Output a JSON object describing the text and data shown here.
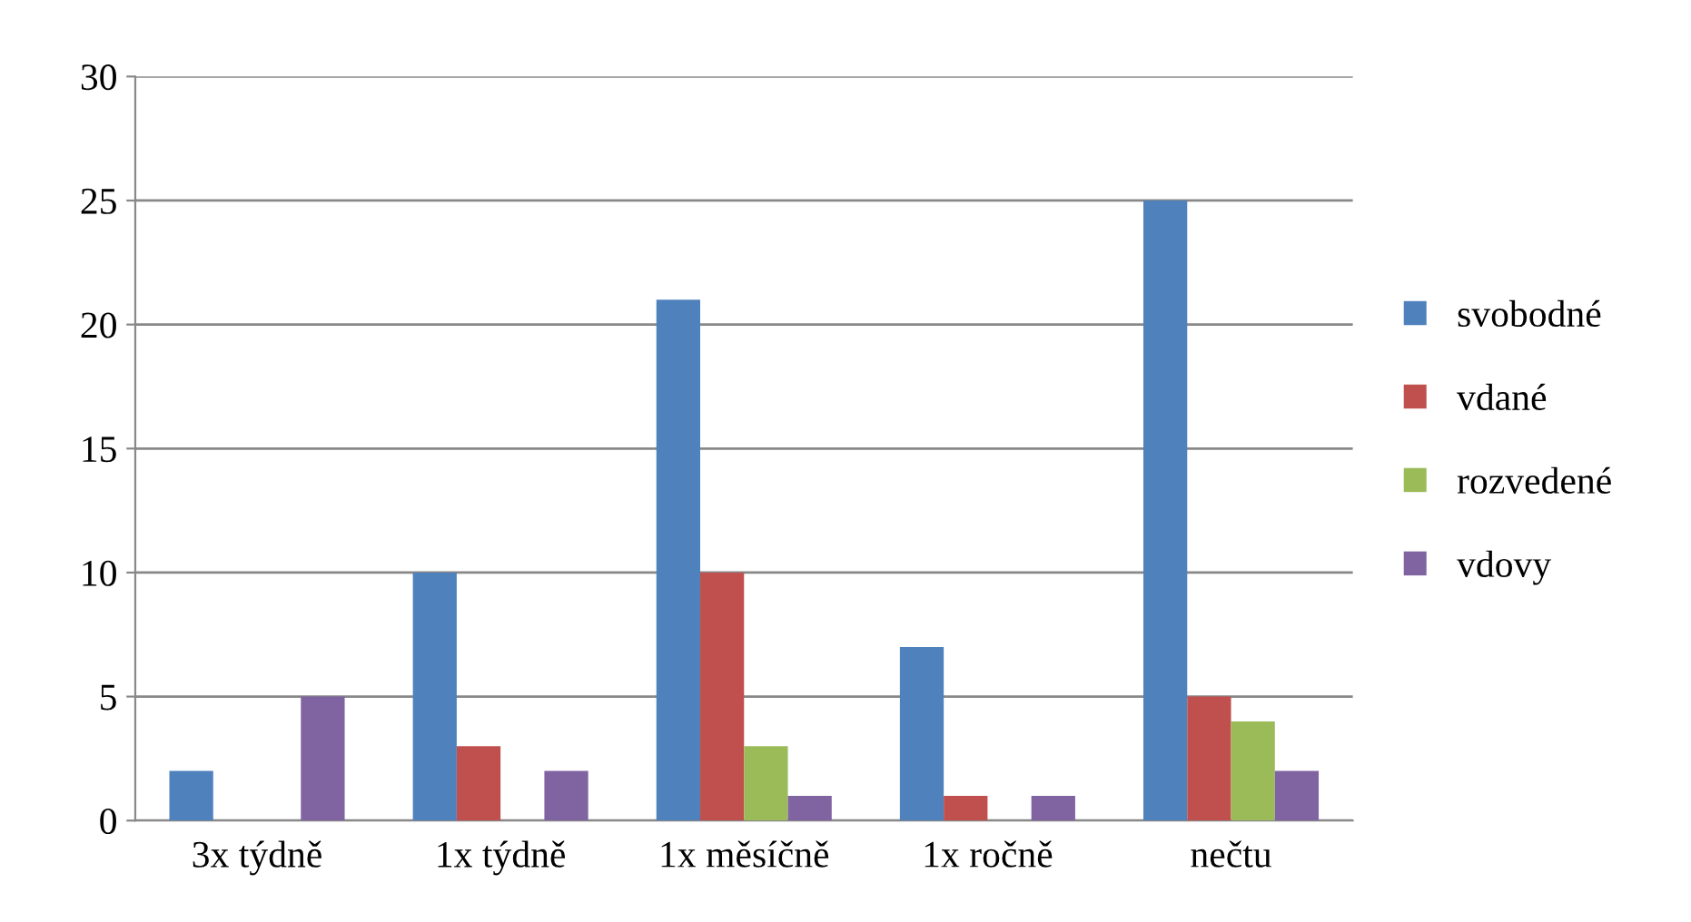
{
  "chart_data": {
    "type": "bar",
    "categories": [
      "3x týdně",
      "1x týdně",
      "1x měsíčně",
      "1x ročně",
      "nečtu"
    ],
    "series": [
      {
        "name": "svobodné",
        "color": "#4f81bd",
        "values": [
          2,
          10,
          21,
          7,
          25
        ]
      },
      {
        "name": "vdané",
        "color": "#c0504d",
        "values": [
          0,
          3,
          10,
          1,
          5
        ]
      },
      {
        "name": "rozvedené",
        "color": "#9bbb59",
        "values": [
          0,
          0,
          3,
          0,
          4
        ]
      },
      {
        "name": "vdovy",
        "color": "#8064a2",
        "values": [
          5,
          2,
          1,
          1,
          2
        ]
      }
    ],
    "ylim": [
      0,
      30
    ],
    "yticks": [
      0,
      5,
      10,
      15,
      20,
      25,
      30
    ],
    "grid": "y",
    "legend": "right"
  }
}
